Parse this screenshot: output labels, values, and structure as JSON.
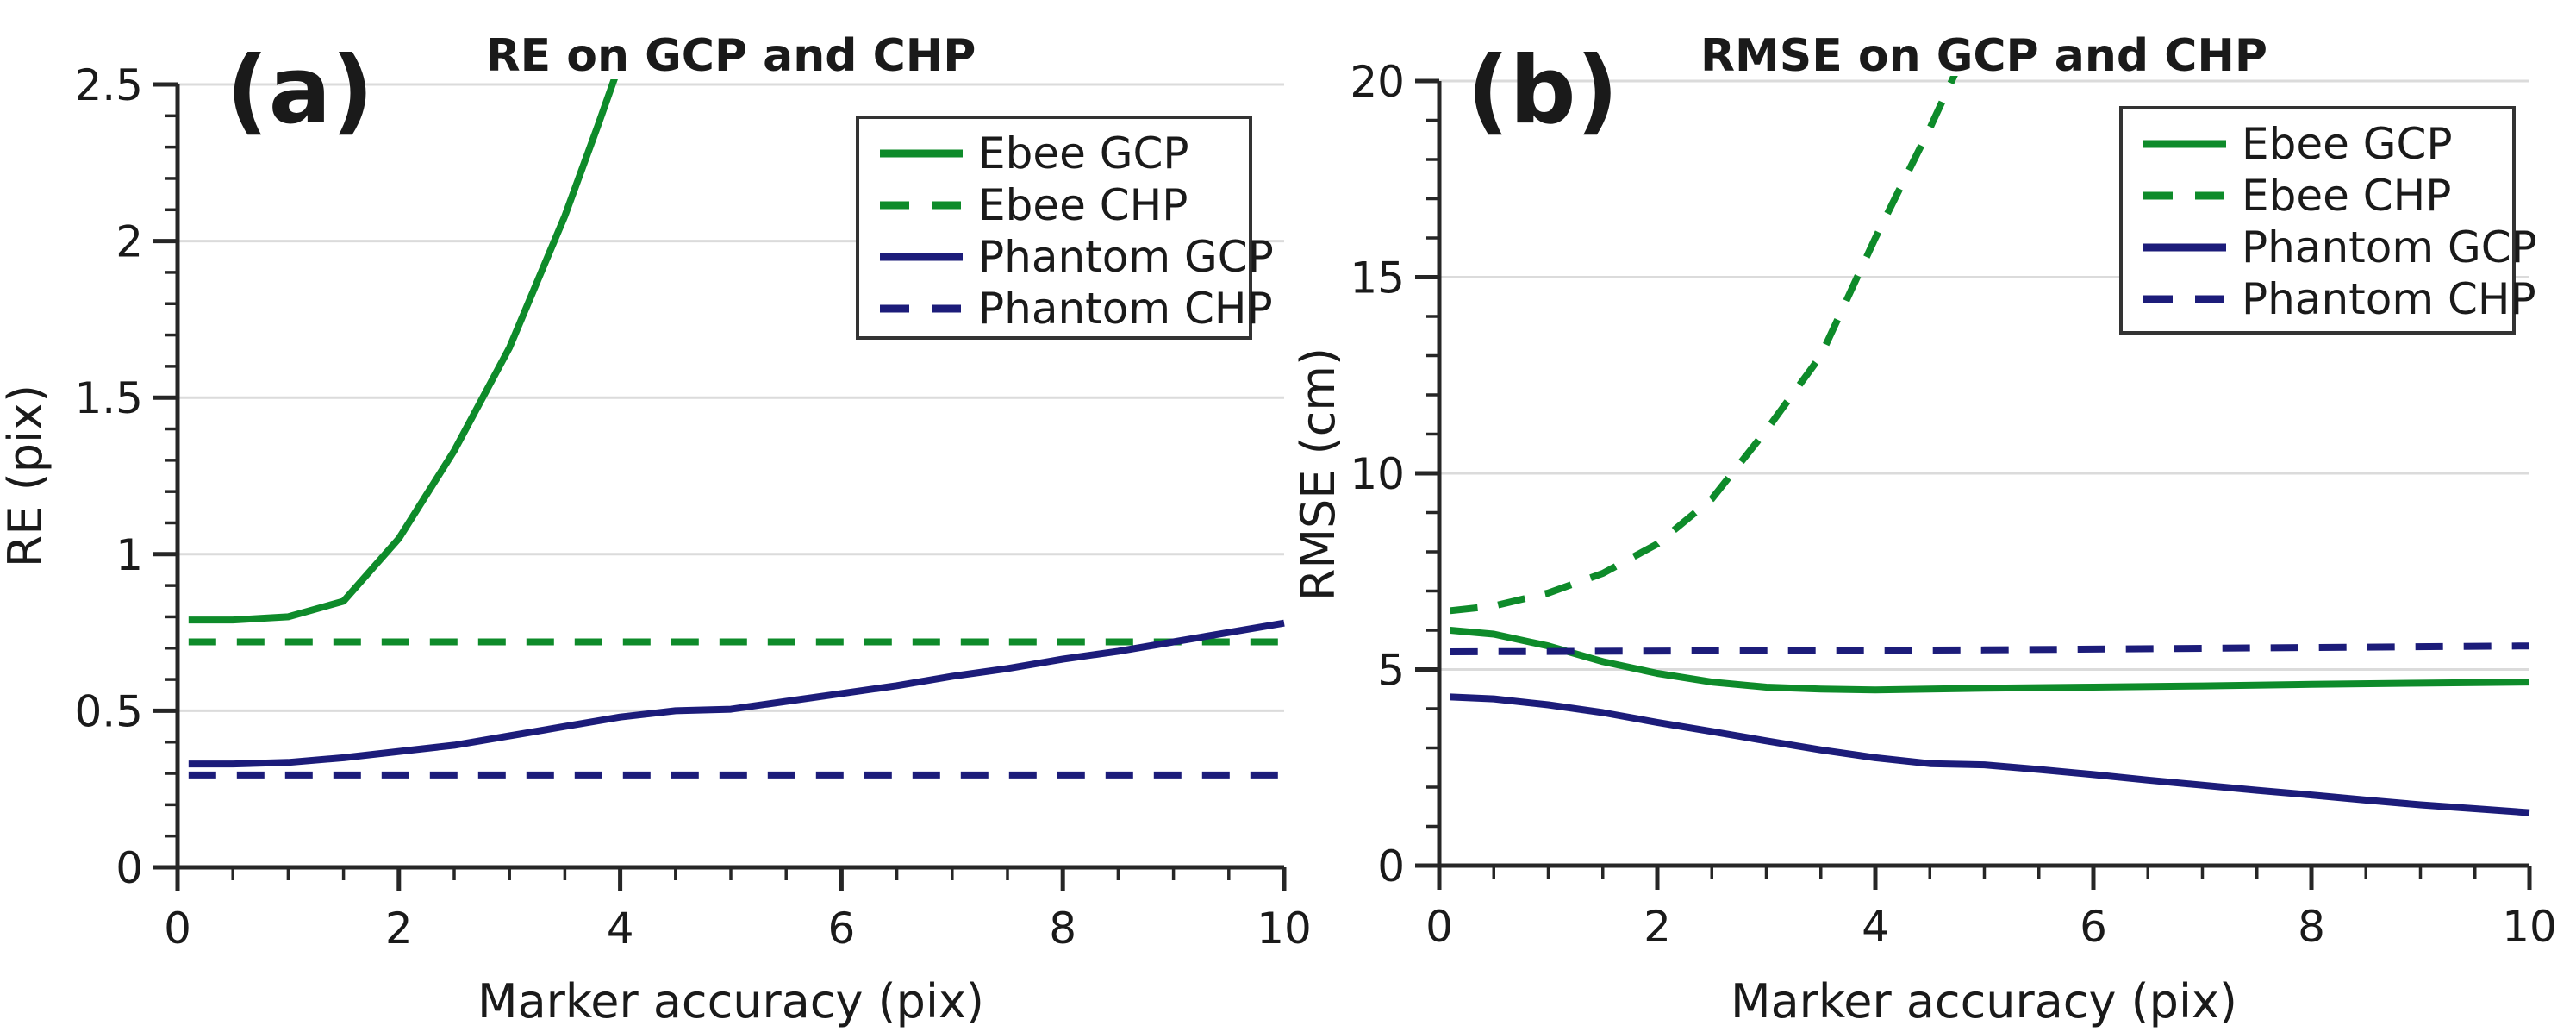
{
  "accent_colors": {
    "green": "#0e8b2a",
    "navy": "#1c1c7a",
    "grid": "#dbdbdb",
    "axis": "#262626"
  },
  "chart_data": [
    {
      "type": "line",
      "panel": "a",
      "corner_label": "(a)",
      "title": "RE on GCP and CHP",
      "xlabel": "Marker accuracy (pix)",
      "ylabel": "RE (pix)",
      "xlim": [
        0,
        10
      ],
      "ylim": [
        0,
        2.5
      ],
      "grid": "horizontal-major",
      "legend_position": "top-right",
      "x_ticks": {
        "values": [
          0,
          2,
          4,
          6,
          8,
          10
        ],
        "labels": [
          "0",
          "2",
          "4",
          "6",
          "8",
          "10"
        ],
        "minor_step": 0.5
      },
      "y_ticks": {
        "values": [
          0,
          0.5,
          1,
          1.5,
          2,
          2.5
        ],
        "labels": [
          "0",
          "0.5",
          "1",
          "1.5",
          "2",
          "2.5"
        ],
        "minor_step": 0.1
      },
      "series": [
        {
          "name": "Ebee GCP",
          "color": "#0e8b2a",
          "style": "solid",
          "points": [
            [
              0.1,
              0.79
            ],
            [
              0.5,
              0.79
            ],
            [
              1,
              0.8
            ],
            [
              1.5,
              0.85
            ],
            [
              2,
              1.05
            ],
            [
              2.5,
              1.33
            ],
            [
              3,
              1.66
            ],
            [
              3.5,
              2.08
            ],
            [
              3.8,
              2.37
            ],
            [
              4.05,
              2.62
            ]
          ]
        },
        {
          "name": "Ebee CHP",
          "color": "#0e8b2a",
          "style": "dashed",
          "points": [
            [
              0.1,
              0.72
            ],
            [
              10,
              0.72
            ]
          ]
        },
        {
          "name": "Phantom GCP",
          "color": "#1c1c7a",
          "style": "solid",
          "points": [
            [
              0.1,
              0.33
            ],
            [
              0.5,
              0.33
            ],
            [
              1,
              0.335
            ],
            [
              1.5,
              0.35
            ],
            [
              2,
              0.37
            ],
            [
              2.5,
              0.39
            ],
            [
              3,
              0.42
            ],
            [
              3.5,
              0.45
            ],
            [
              4,
              0.48
            ],
            [
              4.5,
              0.5
            ],
            [
              5,
              0.505
            ],
            [
              5.5,
              0.53
            ],
            [
              6,
              0.555
            ],
            [
              6.5,
              0.58
            ],
            [
              7,
              0.61
            ],
            [
              7.5,
              0.635
            ],
            [
              8,
              0.665
            ],
            [
              8.5,
              0.69
            ],
            [
              9,
              0.72
            ],
            [
              9.5,
              0.75
            ],
            [
              10,
              0.78
            ]
          ]
        },
        {
          "name": "Phantom CHP",
          "color": "#1c1c7a",
          "style": "dashed",
          "points": [
            [
              0.1,
              0.295
            ],
            [
              10,
              0.295
            ]
          ]
        }
      ]
    },
    {
      "type": "line",
      "panel": "b",
      "corner_label": "(b)",
      "title": "RMSE on GCP and CHP",
      "xlabel": "Marker accuracy (pix)",
      "ylabel": "RMSE (cm)",
      "xlim": [
        0,
        10
      ],
      "ylim": [
        0,
        20
      ],
      "grid": "horizontal-major",
      "legend_position": "top-right",
      "x_ticks": {
        "values": [
          0,
          2,
          4,
          6,
          8,
          10
        ],
        "labels": [
          "0",
          "2",
          "4",
          "6",
          "8",
          "10"
        ],
        "minor_step": 0.5
      },
      "y_ticks": {
        "values": [
          0,
          5,
          10,
          15,
          20
        ],
        "labels": [
          "0",
          "5",
          "10",
          "15",
          "20"
        ],
        "minor_step": 1
      },
      "series": [
        {
          "name": "Ebee GCP",
          "color": "#0e8b2a",
          "style": "solid",
          "points": [
            [
              0.1,
              6.0
            ],
            [
              0.5,
              5.9
            ],
            [
              1,
              5.6
            ],
            [
              1.5,
              5.2
            ],
            [
              2,
              4.9
            ],
            [
              2.5,
              4.68
            ],
            [
              3,
              4.55
            ],
            [
              3.5,
              4.5
            ],
            [
              4,
              4.48
            ],
            [
              4.5,
              4.5
            ],
            [
              5,
              4.52
            ],
            [
              6,
              4.55
            ],
            [
              7,
              4.58
            ],
            [
              8,
              4.62
            ],
            [
              9,
              4.65
            ],
            [
              10,
              4.68
            ]
          ]
        },
        {
          "name": "Ebee CHP",
          "color": "#0e8b2a",
          "style": "dashed",
          "points": [
            [
              0.1,
              6.5
            ],
            [
              0.5,
              6.62
            ],
            [
              1,
              6.95
            ],
            [
              1.5,
              7.45
            ],
            [
              2,
              8.2
            ],
            [
              2.5,
              9.35
            ],
            [
              3,
              11.1
            ],
            [
              3.5,
              13.0
            ],
            [
              4,
              16.0
            ],
            [
              4.5,
              18.8
            ],
            [
              4.8,
              20.6
            ]
          ]
        },
        {
          "name": "Phantom GCP",
          "color": "#1c1c7a",
          "style": "solid",
          "points": [
            [
              0.1,
              4.3
            ],
            [
              0.5,
              4.25
            ],
            [
              1,
              4.1
            ],
            [
              1.5,
              3.9
            ],
            [
              2,
              3.65
            ],
            [
              2.5,
              3.42
            ],
            [
              3,
              3.18
            ],
            [
              3.5,
              2.95
            ],
            [
              4,
              2.75
            ],
            [
              4.5,
              2.6
            ],
            [
              5,
              2.57
            ],
            [
              5.5,
              2.45
            ],
            [
              6,
              2.32
            ],
            [
              6.5,
              2.18
            ],
            [
              7,
              2.05
            ],
            [
              7.5,
              1.92
            ],
            [
              8,
              1.8
            ],
            [
              8.5,
              1.67
            ],
            [
              9,
              1.55
            ],
            [
              9.5,
              1.45
            ],
            [
              10,
              1.35
            ]
          ]
        },
        {
          "name": "Phantom CHP",
          "color": "#1c1c7a",
          "style": "dashed",
          "points": [
            [
              0.1,
              5.45
            ],
            [
              5,
              5.5
            ],
            [
              10,
              5.6
            ]
          ]
        }
      ]
    }
  ]
}
